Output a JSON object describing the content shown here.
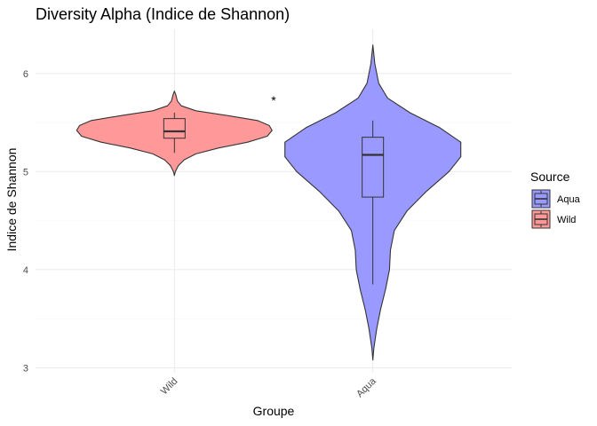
{
  "chart_data": {
    "type": "violin",
    "title": "Diversity Alpha (Indice de Shannon)",
    "xlabel": "Groupe",
    "ylabel": "Indice de Shannon",
    "categories": [
      "Wild",
      "Aqua"
    ],
    "ylim": [
      2.95,
      6.45
    ],
    "yticks": [
      3,
      4,
      5,
      6
    ],
    "grid": true,
    "annotation": "*",
    "legend": {
      "title": "Source",
      "placement": "right",
      "entries": [
        {
          "label": "Aqua",
          "color": "#9999ff"
        },
        {
          "label": "Wild",
          "color": "#ff9999"
        }
      ]
    },
    "groups": [
      {
        "category": "Wild",
        "color": "#ff9999",
        "min": 4.96,
        "max": 5.82,
        "density": [
          [
            4.96,
            0.0
          ],
          [
            5.0,
            0.01
          ],
          [
            5.06,
            0.04
          ],
          [
            5.12,
            0.1
          ],
          [
            5.18,
            0.22
          ],
          [
            5.24,
            0.45
          ],
          [
            5.3,
            0.75
          ],
          [
            5.36,
            0.95
          ],
          [
            5.42,
            1.0
          ],
          [
            5.47,
            0.97
          ],
          [
            5.52,
            0.85
          ],
          [
            5.57,
            0.55
          ],
          [
            5.62,
            0.22
          ],
          [
            5.67,
            0.07
          ],
          [
            5.72,
            0.03
          ],
          [
            5.78,
            0.015
          ],
          [
            5.82,
            0.0
          ]
        ],
        "box": {
          "whisker_low": 5.19,
          "q1": 5.34,
          "median": 5.41,
          "q3": 5.54,
          "whisker_high": 5.6
        }
      },
      {
        "category": "Aqua",
        "color": "#9999ff",
        "min": 3.08,
        "max": 6.29,
        "density": [
          [
            3.08,
            0.0
          ],
          [
            3.2,
            0.01
          ],
          [
            3.4,
            0.04
          ],
          [
            3.6,
            0.08
          ],
          [
            3.8,
            0.13
          ],
          [
            4.0,
            0.17
          ],
          [
            4.2,
            0.18
          ],
          [
            4.4,
            0.22
          ],
          [
            4.6,
            0.35
          ],
          [
            4.8,
            0.55
          ],
          [
            5.0,
            0.78
          ],
          [
            5.15,
            0.9
          ],
          [
            5.3,
            0.9
          ],
          [
            5.45,
            0.68
          ],
          [
            5.6,
            0.38
          ],
          [
            5.75,
            0.15
          ],
          [
            5.9,
            0.06
          ],
          [
            6.1,
            0.02
          ],
          [
            6.29,
            0.0
          ]
        ],
        "box": {
          "whisker_low": 3.85,
          "q1": 4.74,
          "median": 5.17,
          "q3": 5.35,
          "whisker_high": 5.52
        }
      }
    ]
  }
}
